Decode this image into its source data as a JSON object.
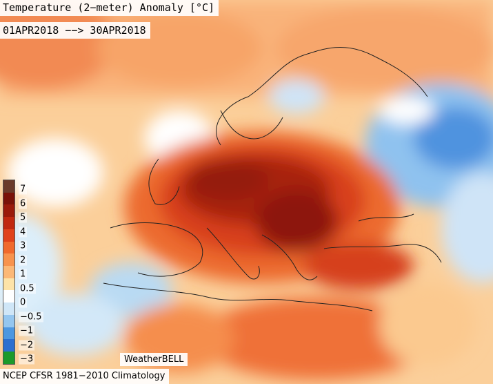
{
  "header": {
    "title": "Temperature (2−meter) Anomaly [°C]",
    "date_range": "01APR2018 −−> 30APR2018"
  },
  "credit": "WeatherBELL",
  "footer": "NCEP CFSR 1981−2010 Climatology",
  "legend": {
    "labels": [
      "7",
      "6",
      "5",
      "4",
      "3",
      "2",
      "1",
      "0.5",
      "0",
      "−0.5",
      "−1",
      "−2",
      "−3"
    ],
    "colors": [
      "#6b3a2a",
      "#7a1208",
      "#9a1a0a",
      "#c0280f",
      "#e0431c",
      "#f06a2e",
      "#f7934e",
      "#fbb877",
      "#fde3a8",
      "#ffffff",
      "#cfe6f7",
      "#94c6ef",
      "#4d97e0",
      "#2d6fcf",
      "#1c9a2a"
    ]
  }
}
